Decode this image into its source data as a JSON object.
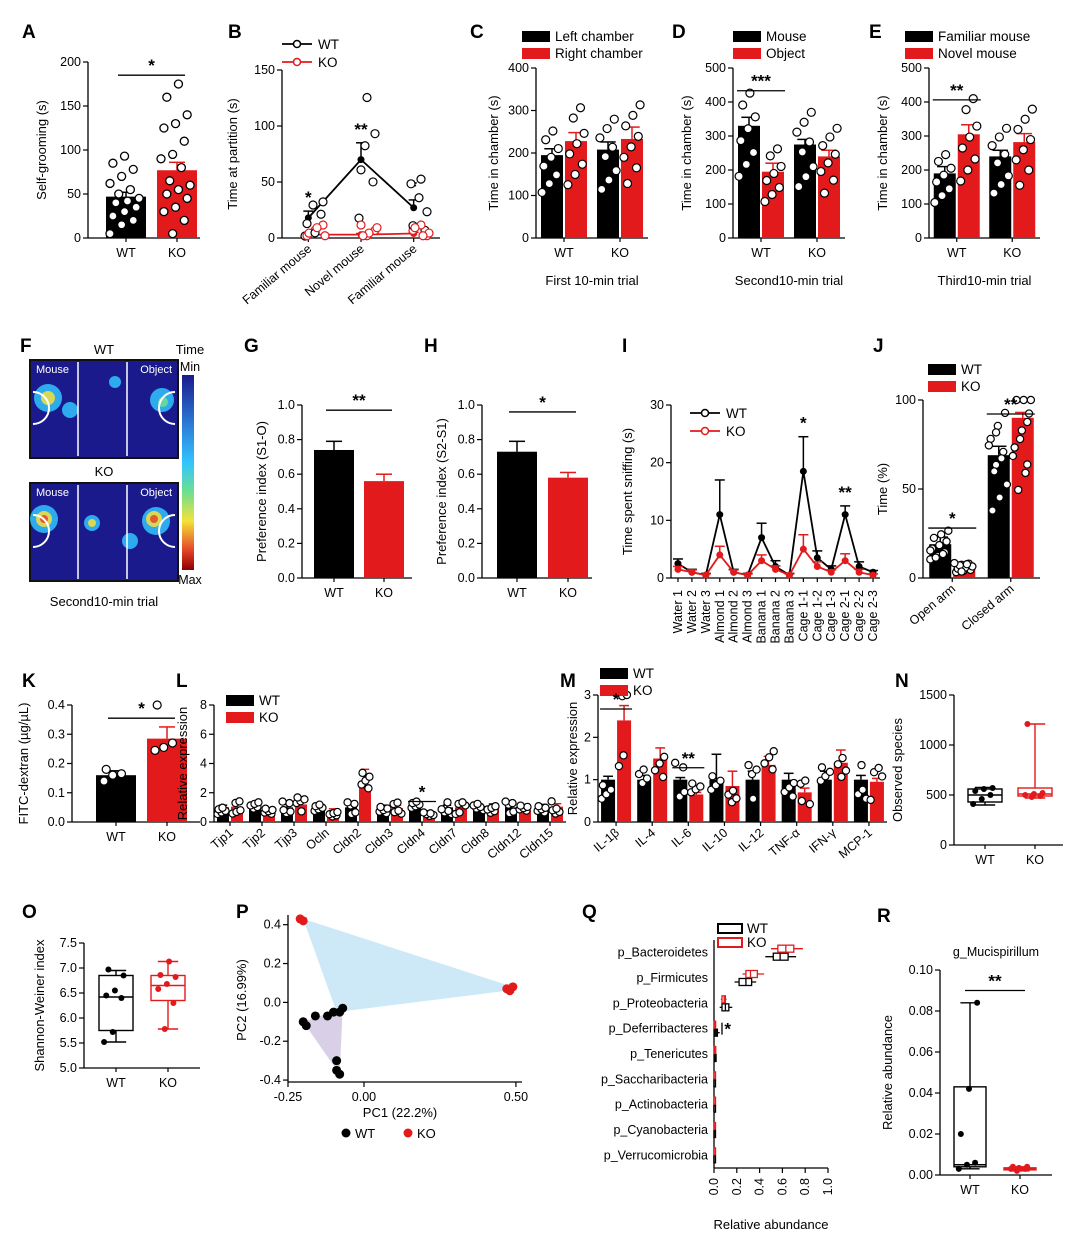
{
  "figure": {
    "colors": {
      "wt": "#000000",
      "ko": "#e31a1c",
      "heat_bg": "#1a1a8c",
      "hull_wt": "#d9d0e8",
      "hull_ko": "#cde8f7"
    },
    "heatmap": {
      "label": "F",
      "wt_title": "WT",
      "ko_title": "KO",
      "left_label": "Mouse",
      "right_label": "Object",
      "colorbar_title": "Time",
      "colorbar_min": "Min",
      "colorbar_max": "Max",
      "caption": "Second10-min trial"
    }
  },
  "chart_data": [
    {
      "label": "A",
      "type": "bar",
      "ylabel": "Self-grooming (s)",
      "ylim": [
        0,
        200
      ],
      "yticks": [
        0,
        50,
        100,
        150,
        200
      ],
      "categories": [
        "WT",
        "KO"
      ],
      "values": [
        47,
        77
      ],
      "errors": [
        5,
        9
      ],
      "points": [
        [
          5,
          15,
          20,
          25,
          30,
          35,
          40,
          42,
          45,
          50,
          55,
          62,
          70,
          78,
          85,
          93
        ],
        [
          5,
          20,
          30,
          35,
          45,
          50,
          55,
          60,
          65,
          80,
          90,
          95,
          110,
          125,
          130,
          140,
          160,
          175
        ]
      ],
      "sig": [
        {
          "a": 0,
          "b": 1,
          "y": 185,
          "t": "*"
        }
      ]
    },
    {
      "label": "B",
      "type": "line",
      "ylabel": "Time at partition (s)",
      "ylim": [
        0,
        150
      ],
      "yticks": [
        0,
        50,
        100,
        150
      ],
      "categories": [
        "Familiar mouse",
        "Novel mouse",
        "Familiar mouse"
      ],
      "series": [
        {
          "name": "WT",
          "values": [
            18,
            70,
            27
          ],
          "errors": [
            6,
            15,
            7
          ]
        },
        {
          "name": "KO",
          "values": [
            3,
            3,
            4
          ],
          "errors": [
            1,
            1,
            1
          ]
        }
      ],
      "sig_text": [
        "*",
        "**",
        "*"
      ]
    },
    {
      "label": "C",
      "type": "bar",
      "ylabel": "Time in chamber (s)",
      "xlabel": "First 10-min trial",
      "ylim": [
        0,
        400
      ],
      "yticks": [
        0,
        100,
        200,
        300,
        400
      ],
      "categories": [
        "WT",
        "KO"
      ],
      "legend": [
        "Left chamber",
        "Right chamber"
      ],
      "series": [
        {
          "name": "Left chamber",
          "values": [
            195,
            208
          ],
          "errors": [
            15,
            18
          ]
        },
        {
          "name": "Right chamber",
          "values": [
            228,
            233
          ],
          "errors": [
            20,
            28
          ]
        }
      ]
    },
    {
      "label": "D",
      "type": "bar",
      "ylabel": "Time in chamber (s)",
      "xlabel": "Second10-min trial",
      "ylim": [
        0,
        500
      ],
      "yticks": [
        0,
        100,
        200,
        300,
        400,
        500
      ],
      "categories": [
        "WT",
        "KO"
      ],
      "legend": [
        "Mouse",
        "Object"
      ],
      "series": [
        {
          "name": "Mouse",
          "values": [
            330,
            275
          ],
          "errors": [
            25,
            15
          ]
        },
        {
          "name": "Object",
          "values": [
            195,
            240
          ],
          "errors": [
            25,
            18
          ]
        }
      ],
      "sig": [
        {
          "text": "***",
          "group": 0
        }
      ]
    },
    {
      "label": "E",
      "type": "bar",
      "ylabel": "Time in chamber (s)",
      "xlabel": "Third10-min trial",
      "ylim": [
        0,
        500
      ],
      "yticks": [
        0,
        100,
        200,
        300,
        400,
        500
      ],
      "categories": [
        "WT",
        "KO"
      ],
      "legend": [
        "Familiar mouse",
        "Novel mouse"
      ],
      "series": [
        {
          "name": "Familiar mouse",
          "values": [
            190,
            240
          ],
          "errors": [
            20,
            18
          ]
        },
        {
          "name": "Novel mouse",
          "values": [
            305,
            282
          ],
          "errors": [
            28,
            25
          ]
        }
      ],
      "sig": [
        {
          "text": "**",
          "group": 0
        }
      ]
    },
    {
      "label": "G",
      "type": "bar",
      "ylabel": "Preference index (S1-O)",
      "ylim": [
        0,
        1.0
      ],
      "yticks": [
        0.0,
        0.2,
        0.4,
        0.6,
        0.8,
        1.0
      ],
      "categories": [
        "WT",
        "KO"
      ],
      "values": [
        0.74,
        0.56
      ],
      "errors": [
        0.05,
        0.04
      ],
      "sig": [
        {
          "a": 0,
          "b": 1,
          "y": 0.97,
          "t": "**"
        }
      ]
    },
    {
      "label": "H",
      "type": "bar",
      "ylabel": "Preference index (S2-S1)",
      "ylim": [
        0,
        1.0
      ],
      "yticks": [
        0.0,
        0.2,
        0.4,
        0.6,
        0.8,
        1.0
      ],
      "categories": [
        "WT",
        "KO"
      ],
      "values": [
        0.73,
        0.58
      ],
      "errors": [
        0.06,
        0.03
      ],
      "sig": [
        {
          "a": 0,
          "b": 1,
          "y": 0.96,
          "t": "*"
        }
      ]
    },
    {
      "label": "I",
      "type": "line",
      "ylabel": "Time spent sniffing (s)",
      "ylim": [
        0,
        30
      ],
      "yticks": [
        0,
        10,
        20,
        30
      ],
      "categories": [
        "Water 1",
        "Water 2",
        "Water 3",
        "Almond 1",
        "Almond 2",
        "Almond 3",
        "Banana 1",
        "Banana 2",
        "Banana 3",
        "Cage 1-1",
        "Cage 1-2",
        "Cage 1-3",
        "Cage 2-1",
        "Cage 2-2",
        "Cage 2-3"
      ],
      "series": [
        {
          "name": "WT",
          "values": [
            2.5,
            1,
            0.5,
            11,
            1,
            0.5,
            7,
            2,
            0.5,
            18.5,
            3.5,
            1.5,
            11,
            2,
            1
          ],
          "errors": [
            0.8,
            0.5,
            0.3,
            6,
            0.5,
            0.3,
            2.5,
            1,
            0.3,
            6,
            1.2,
            0.6,
            1.5,
            0.8,
            0.3
          ]
        },
        {
          "name": "KO",
          "values": [
            1.5,
            1,
            0.5,
            4,
            1,
            0.5,
            3,
            1.5,
            0.5,
            5,
            2,
            1,
            3,
            1,
            0.5
          ],
          "errors": [
            0.5,
            0.4,
            0.2,
            1.5,
            0.4,
            0.2,
            1,
            0.6,
            0.2,
            2.5,
            0.8,
            0.4,
            1.2,
            0.5,
            0.2
          ]
        }
      ],
      "sig_text": [
        "*",
        "**"
      ]
    },
    {
      "label": "J",
      "type": "bar",
      "ylabel": "Time (%)",
      "ylim": [
        0,
        100
      ],
      "yticks": [
        0,
        50,
        100
      ],
      "categories": [
        "Open arm",
        "Closed arm"
      ],
      "legend": [
        "WT",
        "KO"
      ],
      "series": [
        {
          "name": "WT",
          "values": [
            19,
            69
          ],
          "errors": [
            4,
            5
          ]
        },
        {
          "name": "KO",
          "values": [
            6,
            90
          ],
          "errors": [
            2,
            3
          ]
        }
      ],
      "sig": [
        {
          "text": "*",
          "group": 0
        },
        {
          "text": "**",
          "group": 1
        }
      ]
    },
    {
      "label": "K",
      "type": "bar",
      "ylabel": "FITC-dextran (µg/µL)",
      "ylim": [
        0,
        0.4
      ],
      "yticks": [
        0.0,
        0.1,
        0.2,
        0.3,
        0.4
      ],
      "categories": [
        "WT",
        "KO"
      ],
      "values": [
        0.16,
        0.285
      ],
      "errors": [
        0.015,
        0.04
      ],
      "sig": [
        {
          "a": 0,
          "b": 1,
          "y": 0.355,
          "t": "*"
        }
      ]
    },
    {
      "label": "L",
      "type": "bar",
      "ylabel": "Relative expression",
      "ylim": [
        0,
        8
      ],
      "yticks": [
        0,
        2,
        4,
        6,
        8
      ],
      "categories": [
        "Tjp1",
        "Tjp2",
        "Tjp3",
        "Ocln",
        "Cldn2",
        "Cldn3",
        "Cldn4",
        "Cldn7",
        "Cldn8",
        "Cldn12",
        "Cldn15"
      ],
      "legend": [
        "WT",
        "KO"
      ],
      "series": [
        {
          "name": "WT",
          "values": [
            1,
            1,
            1,
            1,
            1,
            1,
            1,
            1,
            1,
            1,
            1
          ],
          "errors": [
            0.15,
            0.12,
            0.2,
            0.25,
            0.25,
            0.15,
            0.15,
            0.15,
            0.2,
            0.15,
            0.2
          ]
        },
        {
          "name": "KO",
          "values": [
            1.05,
            0.8,
            1.2,
            0.7,
            2.5,
            0.95,
            0.55,
            1,
            1.05,
            0.8,
            1.05
          ],
          "errors": [
            0.15,
            0.15,
            0.25,
            0.2,
            1.1,
            0.2,
            0.1,
            0.15,
            0.2,
            0.15,
            0.2
          ]
        }
      ],
      "sig": [
        {
          "text": "*",
          "group": 6
        }
      ]
    },
    {
      "label": "M",
      "type": "bar",
      "ylabel": "Relative expression",
      "ylim": [
        0,
        3
      ],
      "yticks": [
        0,
        1,
        2,
        3
      ],
      "categories": [
        "IL-1β",
        "IL-4",
        "IL-6",
        "IL-10",
        "IL-12",
        "TNF-α",
        "IFN-γ",
        "MCP-1"
      ],
      "legend": [
        "WT",
        "KO"
      ],
      "series": [
        {
          "name": "WT",
          "values": [
            1,
            1,
            1,
            1,
            1,
            1,
            1,
            1
          ],
          "errors": [
            0.08,
            0.1,
            0.05,
            0.6,
            0.2,
            0.15,
            0.2,
            0.1
          ]
        },
        {
          "name": "KO",
          "values": [
            2.4,
            1.5,
            0.65,
            0.85,
            1.35,
            0.7,
            1.4,
            0.95
          ],
          "errors": [
            0.35,
            0.25,
            0.05,
            0.35,
            0.2,
            0.1,
            0.3,
            0.08
          ]
        }
      ],
      "sig": [
        {
          "text": "*",
          "group": 0
        },
        {
          "text": "**",
          "group": 2
        }
      ]
    },
    {
      "label": "N",
      "type": "box",
      "ylabel": "Observed species",
      "ylim": [
        0,
        1500
      ],
      "yticks": [
        0,
        500,
        1000,
        1500
      ],
      "categories": [
        "WT",
        "KO"
      ],
      "boxes": [
        {
          "min": 400,
          "q1": 430,
          "median": 500,
          "q3": 560,
          "max": 575
        },
        {
          "min": 470,
          "q1": 490,
          "median": 510,
          "q3": 570,
          "max": 1210
        }
      ],
      "points": [
        [
          410,
          460,
          500,
          540,
          560,
          570
        ],
        [
          480,
          490,
          500,
          510,
          520,
          1210
        ]
      ]
    },
    {
      "label": "O",
      "type": "box",
      "ylabel": "Shannon-Weiner index",
      "ylim": [
        5.0,
        7.5
      ],
      "yticks": [
        5.0,
        5.5,
        6.0,
        6.5,
        7.0,
        7.5
      ],
      "categories": [
        "WT",
        "KO"
      ],
      "boxes": [
        {
          "min": 5.52,
          "q1": 5.75,
          "median": 6.42,
          "q3": 6.85,
          "max": 6.95
        },
        {
          "min": 5.78,
          "q1": 6.35,
          "median": 6.65,
          "q3": 6.85,
          "max": 7.13
        }
      ],
      "points": [
        [
          5.52,
          5.72,
          6.4,
          6.45,
          6.55,
          6.85,
          6.97
        ],
        [
          5.78,
          6.3,
          6.58,
          6.68,
          6.82,
          6.86,
          7.13
        ]
      ]
    },
    {
      "label": "P",
      "type": "scatter",
      "xlabel": "PC1 (22.2%)",
      "ylabel": "PC2 (16.99%)",
      "xlim": [
        -0.25,
        0.52
      ],
      "ylim": [
        -0.41,
        0.45
      ],
      "xticks": [
        -0.25,
        0.0,
        0.5
      ],
      "xtick_labels": [
        "-0.25",
        "0.00",
        "0.50"
      ],
      "yticks": [
        -0.4,
        -0.2,
        0.0,
        0.2,
        0.4
      ],
      "ytick_labels": [
        "-0.4",
        "-0.2",
        "0.0",
        "0.2",
        "0.4"
      ],
      "series": [
        {
          "name": "WT",
          "x": [
            -0.2,
            -0.19,
            -0.16,
            -0.12,
            -0.1,
            -0.09,
            -0.09,
            -0.08,
            -0.08,
            -0.07
          ],
          "y": [
            -0.1,
            -0.12,
            -0.07,
            -0.07,
            -0.05,
            -0.3,
            -0.35,
            -0.37,
            -0.05,
            -0.03
          ]
        },
        {
          "name": "KO",
          "x": [
            -0.21,
            -0.2,
            0.47,
            0.48,
            0.49
          ],
          "y": [
            0.43,
            0.42,
            0.07,
            0.06,
            0.08
          ]
        }
      ],
      "legend": [
        "WT",
        "KO"
      ]
    },
    {
      "label": "Q",
      "type": "box",
      "orientation": "horizontal",
      "xlabel": "Relative abundance",
      "xlim": [
        0,
        1.0
      ],
      "xticks": [
        0.0,
        0.2,
        0.4,
        0.6,
        0.8,
        1.0
      ],
      "categories": [
        "p_Bacteroidetes",
        "p_Firmicutes",
        "p_Proteobacteria",
        "p_Deferribacteres",
        "p_Tenericutes",
        "p_Saccharibacteria",
        "p_Actinobacteria",
        "p_Cyanobacteria",
        "p_Verrucomicrobia"
      ],
      "legend": [
        "WT",
        "KO"
      ],
      "series": [
        {
          "name": "WT",
          "boxes": [
            [
              0.45,
              0.52,
              0.58,
              0.65,
              0.72
            ],
            [
              0.18,
              0.22,
              0.28,
              0.33,
              0.37
            ],
            [
              0.05,
              0.07,
              0.1,
              0.13,
              0.16
            ],
            [
              0.0,
              0.01,
              0.02,
              0.03,
              0.05
            ],
            [
              0.0,
              0.005,
              0.01,
              0.015,
              0.02
            ],
            [
              0,
              0,
              0,
              0.002,
              0.004
            ],
            [
              0,
              0,
              0,
              0.002,
              0.004
            ],
            [
              0,
              0,
              0.002,
              0.004,
              0.006
            ],
            [
              0,
              0,
              0,
              0.002,
              0.004
            ]
          ]
        },
        {
          "name": "KO",
          "boxes": [
            [
              0.5,
              0.56,
              0.63,
              0.7,
              0.78
            ],
            [
              0.25,
              0.28,
              0.32,
              0.38,
              0.44
            ],
            [
              0.06,
              0.07,
              0.09,
              0.1,
              0.11
            ],
            [
              0.0,
              0.001,
              0.002,
              0.003,
              0.004
            ],
            [
              0.0,
              0.002,
              0.004,
              0.006,
              0.01
            ],
            [
              0,
              0,
              0,
              0.002,
              0.004
            ],
            [
              0,
              0,
              0,
              0.002,
              0.004
            ],
            [
              0,
              0,
              0.002,
              0.004,
              0.008
            ],
            [
              0,
              0,
              0,
              0.002,
              0.004
            ]
          ]
        }
      ],
      "sig": [
        {
          "text": "*",
          "group": 3
        }
      ]
    },
    {
      "label": "R",
      "type": "box",
      "title": "g_Mucispirillum",
      "ylabel": "Relative abundance",
      "ylim": [
        0,
        0.1
      ],
      "yticks": [
        0.0,
        0.02,
        0.04,
        0.06,
        0.08,
        0.1
      ],
      "ytick_labels": [
        "0.00",
        "0.02",
        "0.04",
        "0.06",
        "0.08",
        "0.10"
      ],
      "categories": [
        "WT",
        "KO"
      ],
      "boxes": [
        {
          "min": 0.003,
          "q1": 0.004,
          "median": 0.005,
          "q3": 0.043,
          "max": 0.084
        },
        {
          "min": 0.002,
          "q1": 0.0025,
          "median": 0.003,
          "q3": 0.0035,
          "max": 0.004
        }
      ],
      "points": [
        [
          0.003,
          0.005,
          0.006,
          0.02,
          0.042,
          0.084
        ],
        [
          0.002,
          0.003,
          0.003,
          0.0035,
          0.004,
          0.004
        ]
      ],
      "sig": [
        {
          "a": 0,
          "b": 1,
          "y": 0.09,
          "t": "**"
        }
      ]
    }
  ]
}
